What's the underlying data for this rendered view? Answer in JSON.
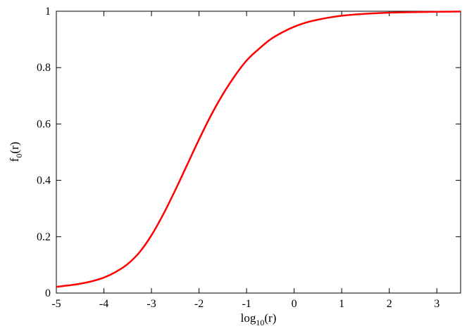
{
  "chart_data": {
    "type": "line",
    "xlabel": {
      "base": "log",
      "sub": "10",
      "tail": "(r)"
    },
    "ylabel": {
      "base": "f",
      "sub": "0",
      "tail": "(r)"
    },
    "xlim": [
      -5,
      3.5
    ],
    "ylim": [
      0,
      1
    ],
    "xticks": [
      -5,
      -4,
      -3,
      -2,
      -1,
      0,
      1,
      2,
      3
    ],
    "xtick_labels": [
      "-5",
      "-4",
      "-3",
      "-2",
      "-1",
      "0",
      "1",
      "2",
      "3"
    ],
    "yticks": [
      0,
      0.2,
      0.4,
      0.6,
      0.8,
      1
    ],
    "ytick_labels": [
      "0",
      "0.2",
      "0.4",
      "0.6",
      "0.8",
      "1"
    ],
    "grid": false,
    "series": [
      {
        "color": "#ff0000",
        "x": [
          -5,
          -4.75,
          -4.5,
          -4.25,
          -4,
          -3.75,
          -3.5,
          -3.25,
          -3,
          -2.75,
          -2.5,
          -2.25,
          -2,
          -1.75,
          -1.5,
          -1.25,
          -1,
          -0.75,
          -0.5,
          -0.25,
          0,
          0.25,
          0.5,
          0.75,
          1,
          1.25,
          1.5,
          1.75,
          2,
          2.5,
          3,
          3.5
        ],
        "y": [
          0.022,
          0.027,
          0.033,
          0.042,
          0.055,
          0.075,
          0.103,
          0.145,
          0.205,
          0.28,
          0.365,
          0.455,
          0.545,
          0.63,
          0.705,
          0.77,
          0.825,
          0.865,
          0.9,
          0.925,
          0.945,
          0.96,
          0.97,
          0.978,
          0.984,
          0.988,
          0.991,
          0.993,
          0.995,
          0.997,
          0.998,
          0.999
        ]
      }
    ]
  }
}
